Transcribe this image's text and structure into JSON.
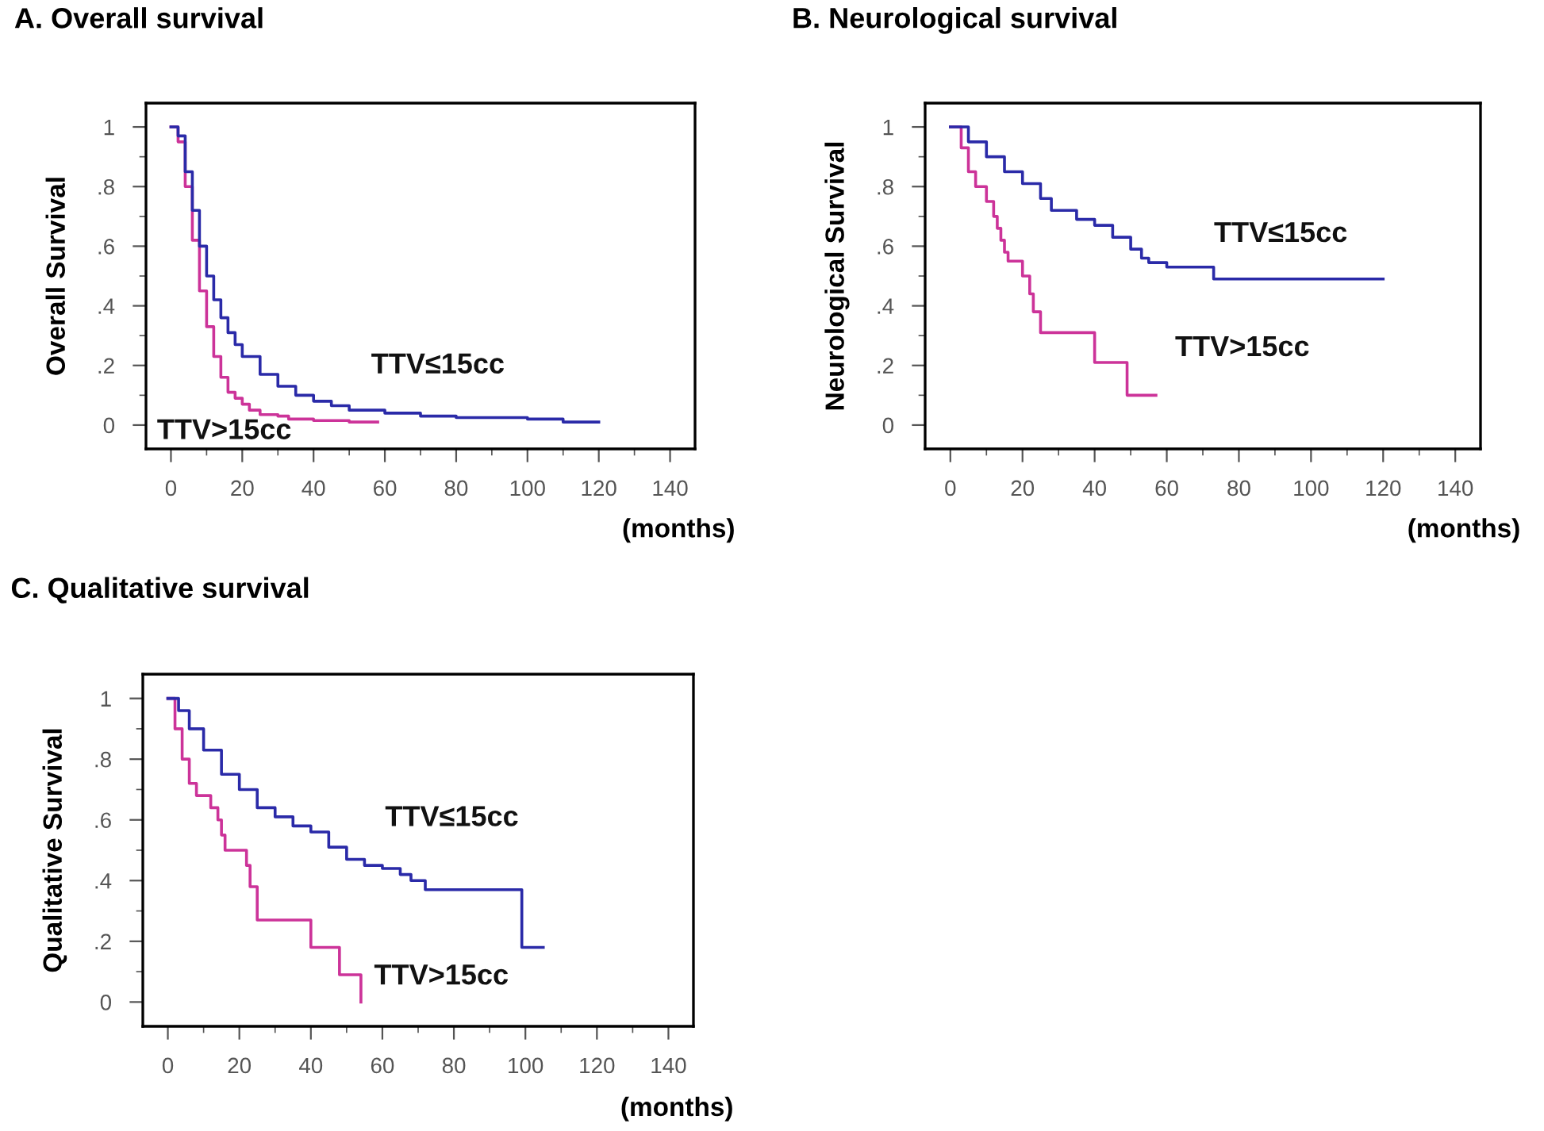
{
  "chart_data": [
    {
      "type": "step",
      "title": "A. Overall survival",
      "ylabel": "Overall Survival",
      "xlabel": "(months)",
      "xlim": [
        -7,
        147
      ],
      "ylim": [
        -0.08,
        1.08
      ],
      "xticks": [
        0,
        20,
        40,
        60,
        80,
        100,
        120,
        140
      ],
      "yticks": [
        {
          "value": 0,
          "label": "0"
        },
        {
          "value": 0.2,
          "label": ".2"
        },
        {
          "value": 0.4,
          "label": ".4"
        },
        {
          "value": 0.6,
          "label": ".6"
        },
        {
          "value": 0.8,
          "label": ".8"
        },
        {
          "value": 1,
          "label": "1"
        }
      ],
      "grid": false,
      "legend": false,
      "marker": "none",
      "line_style": "solid",
      "series": [
        {
          "name": "TTV≤15cc",
          "color": "#2a2aa8",
          "x": [
            0,
            2,
            4,
            6,
            8,
            10,
            12,
            14,
            16,
            18,
            20,
            25,
            30,
            35,
            40,
            45,
            50,
            60,
            70,
            80,
            100,
            110,
            120
          ],
          "values": [
            1,
            0.97,
            0.85,
            0.72,
            0.6,
            0.5,
            0.42,
            0.36,
            0.31,
            0.27,
            0.23,
            0.17,
            0.13,
            0.1,
            0.08,
            0.065,
            0.05,
            0.04,
            0.03,
            0.025,
            0.02,
            0.01,
            0.01
          ]
        },
        {
          "name": "TTV>15cc",
          "color": "#cc3399",
          "x": [
            0,
            2,
            4,
            6,
            8,
            10,
            12,
            14,
            16,
            18,
            20,
            22,
            25,
            30,
            33,
            40,
            50,
            58
          ],
          "values": [
            1,
            0.95,
            0.8,
            0.62,
            0.45,
            0.33,
            0.23,
            0.16,
            0.11,
            0.09,
            0.07,
            0.05,
            0.035,
            0.03,
            0.02,
            0.015,
            0.01,
            0.01
          ]
        }
      ]
    },
    {
      "type": "step",
      "title": "B. Neurological survival",
      "ylabel": "Neurological Survival",
      "xlabel": "(months)",
      "xlim": [
        -7,
        147
      ],
      "ylim": [
        -0.08,
        1.08
      ],
      "xticks": [
        0,
        20,
        40,
        60,
        80,
        100,
        120,
        140
      ],
      "yticks": [
        {
          "value": 0,
          "label": "0"
        },
        {
          "value": 0.2,
          "label": ".2"
        },
        {
          "value": 0.4,
          "label": ".4"
        },
        {
          "value": 0.6,
          "label": ".6"
        },
        {
          "value": 0.8,
          "label": ".8"
        },
        {
          "value": 1,
          "label": "1"
        }
      ],
      "grid": false,
      "legend": false,
      "marker": "none",
      "line_style": "solid",
      "series": [
        {
          "name": "TTV≤15cc",
          "color": "#2a2aa8",
          "x": [
            0,
            5,
            10,
            15,
            20,
            25,
            28,
            35,
            40,
            45,
            50,
            53,
            55,
            60,
            70,
            73,
            120
          ],
          "values": [
            1,
            0.95,
            0.9,
            0.85,
            0.81,
            0.76,
            0.72,
            0.69,
            0.67,
            0.63,
            0.59,
            0.56,
            0.545,
            0.53,
            0.53,
            0.49,
            0.49
          ]
        },
        {
          "name": "TTV>15cc",
          "color": "#cc3399",
          "x": [
            0,
            3,
            5,
            7,
            10,
            12,
            13,
            14,
            15,
            16,
            20,
            22,
            23,
            25,
            40,
            49,
            57
          ],
          "values": [
            1,
            0.93,
            0.85,
            0.8,
            0.75,
            0.7,
            0.66,
            0.62,
            0.58,
            0.55,
            0.5,
            0.44,
            0.38,
            0.31,
            0.21,
            0.1,
            0.1
          ]
        }
      ]
    },
    {
      "type": "step",
      "title": "C. Qualitative survival",
      "ylabel": "Qualitative Survival",
      "xlabel": "(months)",
      "xlim": [
        -7,
        147
      ],
      "ylim": [
        -0.08,
        1.08
      ],
      "xticks": [
        0,
        20,
        40,
        60,
        80,
        100,
        120,
        140
      ],
      "yticks": [
        {
          "value": 0,
          "label": "0"
        },
        {
          "value": 0.2,
          "label": ".2"
        },
        {
          "value": 0.4,
          "label": ".4"
        },
        {
          "value": 0.6,
          "label": ".6"
        },
        {
          "value": 0.8,
          "label": ".8"
        },
        {
          "value": 1,
          "label": "1"
        }
      ],
      "grid": false,
      "legend": false,
      "marker": "none",
      "line_style": "solid",
      "series": [
        {
          "name": "TTV≤15cc",
          "color": "#2a2aa8",
          "x": [
            0,
            3,
            6,
            10,
            15,
            20,
            25,
            30,
            35,
            40,
            45,
            50,
            55,
            60,
            65,
            68,
            72,
            99,
            105
          ],
          "values": [
            1,
            0.96,
            0.9,
            0.83,
            0.75,
            0.7,
            0.64,
            0.61,
            0.58,
            0.56,
            0.51,
            0.47,
            0.45,
            0.44,
            0.42,
            0.4,
            0.37,
            0.18,
            0.18
          ]
        },
        {
          "name": "TTV>15cc",
          "color": "#cc3399",
          "x": [
            0,
            2,
            4,
            6,
            8,
            12,
            14,
            15,
            16,
            22,
            23,
            25,
            40,
            48,
            54
          ],
          "values": [
            1,
            0.9,
            0.8,
            0.72,
            0.68,
            0.64,
            0.6,
            0.55,
            0.5,
            0.45,
            0.38,
            0.27,
            0.18,
            0.09,
            0.0
          ]
        }
      ]
    }
  ]
}
